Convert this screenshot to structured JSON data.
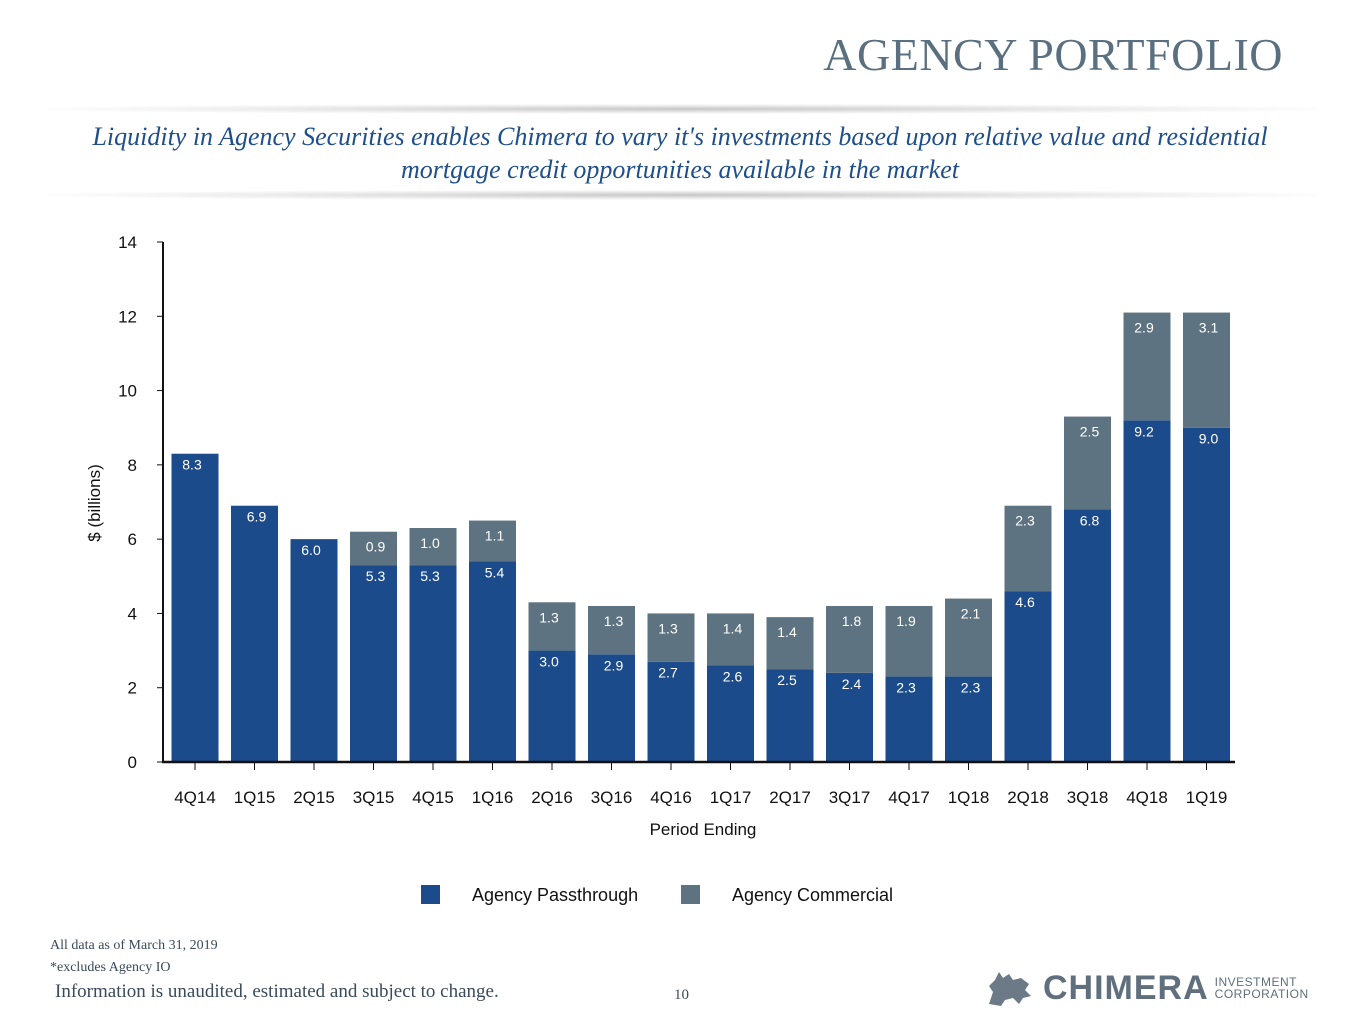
{
  "slide": {
    "title": "AGENCY PORTFOLIO",
    "subtitle": "Liquidity in Agency Securities enables Chimera to vary it's investments based upon relative value and residential mortgage credit opportunities available in the market",
    "footnote_date": "All data as of March 31, 2019",
    "footnote_excludes": "*excludes Agency IO",
    "disclaimer": "Information is unaudited, estimated and subject to change.",
    "page_number": "10",
    "logo_name": "CHIMERA",
    "logo_sub_line1": "INVESTMENT",
    "logo_sub_line2": "CORPORATION"
  },
  "colors": {
    "passthrough": "#1b4b8a",
    "commercial": "#5e7381",
    "text": "#111111",
    "axis": "#111111"
  },
  "chart_data": {
    "type": "bar",
    "stacked": true,
    "title": "",
    "xlabel": "Period Ending",
    "ylabel": "$ (billions)",
    "ylim": [
      0,
      14
    ],
    "yticks": [
      0,
      2,
      4,
      6,
      8,
      10,
      12,
      14
    ],
    "legend_position": "bottom",
    "categories": [
      "4Q14",
      "1Q15",
      "2Q15",
      "3Q15",
      "4Q15",
      "1Q16",
      "2Q16",
      "3Q16",
      "4Q16",
      "1Q17",
      "2Q17",
      "3Q17",
      "4Q17",
      "1Q18",
      "2Q18",
      "3Q18",
      "4Q18",
      "1Q19"
    ],
    "series": [
      {
        "name": "Agency Passthrough",
        "values": [
          8.3,
          6.9,
          6.0,
          5.3,
          5.3,
          5.4,
          3.0,
          2.9,
          2.7,
          2.6,
          2.5,
          2.4,
          2.3,
          2.3,
          4.6,
          6.8,
          9.2,
          9.0
        ],
        "labels": [
          "8.3",
          "6.9",
          "6.0",
          "5.3",
          "5.3",
          "5.4",
          "3.0",
          "2.9",
          "2.7",
          "2.6",
          "2.5",
          "2.4",
          "2.3",
          "2.3",
          "4.6",
          "6.8",
          "9.2",
          "9.0"
        ]
      },
      {
        "name": "Agency Commercial",
        "values": [
          0,
          0,
          0,
          0.9,
          1.0,
          1.1,
          1.3,
          1.3,
          1.3,
          1.4,
          1.4,
          1.8,
          1.9,
          2.1,
          2.3,
          2.5,
          2.9,
          3.1
        ],
        "labels": [
          "",
          "",
          "",
          "0.9",
          "1.0",
          "1.1",
          "1.3",
          "1.3",
          "1.3",
          "1.4",
          "1.4",
          "1.8",
          "1.9",
          "2.1",
          "2.3",
          "2.5",
          "2.9",
          "3.1"
        ]
      }
    ]
  }
}
